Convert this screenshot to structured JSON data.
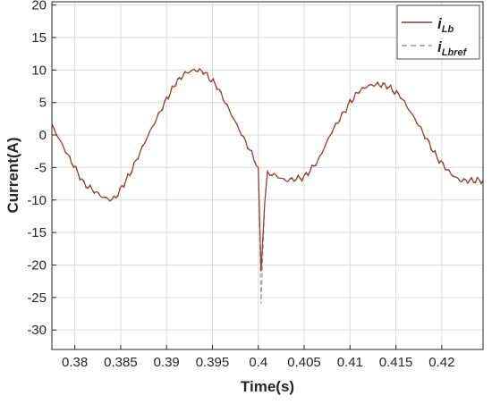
{
  "chart_data": {
    "type": "line",
    "title": "",
    "xlabel": "Time(s)",
    "ylabel": "Current(A)",
    "xlim": [
      0.3775,
      0.4245
    ],
    "ylim": [
      -33,
      20.5
    ],
    "xticks": [
      0.38,
      0.385,
      0.39,
      0.395,
      0.4,
      0.405,
      0.41,
      0.415,
      0.42
    ],
    "xtick_labels": [
      "0.38",
      "0.385",
      "0.39",
      "0.395",
      "0.4",
      "0.405",
      "0.41",
      "0.415",
      "0.42"
    ],
    "yticks": [
      20,
      15,
      10,
      5,
      0,
      -5,
      -10,
      -15,
      -20,
      -25,
      -30
    ],
    "ytick_labels": [
      "20",
      "15",
      "10",
      "5",
      "0",
      "-5",
      "-10",
      "-15",
      "-20",
      "-25",
      "-30"
    ],
    "grid": true,
    "legend_position": "top-right",
    "legend_entries": [
      {
        "label_main": "i",
        "label_sub": "Lb",
        "style": "solid",
        "color": "#8B3A2B"
      },
      {
        "label_main": "i",
        "label_sub": "Lbref",
        "style": "dashed",
        "color": "#9a9a9a"
      }
    ],
    "series": [
      {
        "name": "iLb",
        "color": "#8B3A2B",
        "style": "solid",
        "x": [
          0.3775,
          0.379,
          0.381,
          0.383,
          0.384,
          0.3845,
          0.386,
          0.388,
          0.39,
          0.391,
          0.392,
          0.393,
          0.394,
          0.3955,
          0.3975,
          0.3995,
          0.4,
          0.4003,
          0.4007,
          0.401,
          0.4015,
          0.403,
          0.405,
          0.4065,
          0.408,
          0.41,
          0.411,
          0.412,
          0.413,
          0.414,
          0.4155,
          0.4175,
          0.4195,
          0.421,
          0.422,
          0.4245
        ],
        "y": [
          1.5,
          -2.5,
          -7.5,
          -9.5,
          -10,
          -9.5,
          -6,
          0,
          5.5,
          8,
          9.5,
          10,
          9.8,
          7.5,
          2,
          -3.5,
          -5,
          -21,
          -10,
          -6,
          -6,
          -7,
          -6.5,
          -4,
          0.5,
          5,
          6.8,
          7.6,
          7.8,
          7.6,
          6,
          1.5,
          -3.5,
          -6,
          -7,
          -7
        ]
      },
      {
        "name": "iLbref",
        "color": "#9a9a9a",
        "style": "dashed",
        "x": [
          0.3775,
          0.379,
          0.381,
          0.383,
          0.384,
          0.3845,
          0.386,
          0.388,
          0.39,
          0.391,
          0.392,
          0.393,
          0.394,
          0.3955,
          0.3975,
          0.3995,
          0.4,
          0.4003,
          0.4007,
          0.401,
          0.4015,
          0.403,
          0.405,
          0.4065,
          0.408,
          0.41,
          0.411,
          0.412,
          0.413,
          0.414,
          0.4155,
          0.4175,
          0.4195,
          0.421,
          0.422,
          0.4245
        ],
        "y": [
          1.5,
          -2.5,
          -7.5,
          -9.5,
          -10,
          -9.5,
          -6,
          0,
          5.5,
          8,
          9.5,
          10,
          9.8,
          7.5,
          2,
          -3.5,
          -5,
          -26,
          -10,
          -6,
          -6,
          -7,
          -6.5,
          -4,
          0.5,
          5,
          6.8,
          7.6,
          7.8,
          7.6,
          6,
          1.5,
          -3.5,
          -6,
          -7,
          -7
        ]
      }
    ]
  }
}
